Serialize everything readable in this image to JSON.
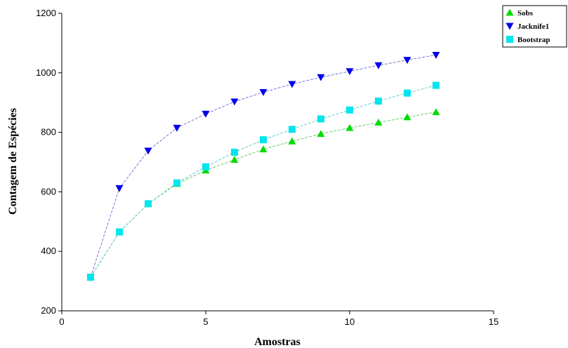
{
  "chart_data": {
    "type": "line",
    "title": "",
    "xlabel": "Amostras",
    "ylabel": "Contagem de Espécies",
    "xlim": [
      0,
      15
    ],
    "ylim": [
      200,
      1200
    ],
    "xticks": [
      0,
      5,
      10,
      15
    ],
    "yticks": [
      200,
      400,
      600,
      800,
      1000,
      1200
    ],
    "x": [
      1,
      2,
      3,
      4,
      5,
      6,
      7,
      8,
      9,
      10,
      11,
      12,
      13
    ],
    "grid": false,
    "legend_position": "top-right",
    "series": [
      {
        "name": "Sobs",
        "marker": "triangle-up",
        "color": "#00dd00",
        "line_color": "#66cc66",
        "values": [
          313,
          465,
          560,
          627,
          672,
          708,
          743,
          770,
          795,
          815,
          833,
          851,
          868
        ]
      },
      {
        "name": "Jacknife1",
        "marker": "triangle-down",
        "color": "#0000ee",
        "line_color": "#7777dd",
        "values": [
          313,
          612,
          738,
          815,
          862,
          903,
          935,
          962,
          985,
          1005,
          1025,
          1043,
          1060
        ]
      },
      {
        "name": "Bootstrap",
        "marker": "square",
        "color": "#00e5ee",
        "line_color": "#66cccc",
        "values": [
          313,
          465,
          560,
          630,
          684,
          733,
          775,
          810,
          845,
          875,
          905,
          932,
          958
        ]
      }
    ]
  }
}
